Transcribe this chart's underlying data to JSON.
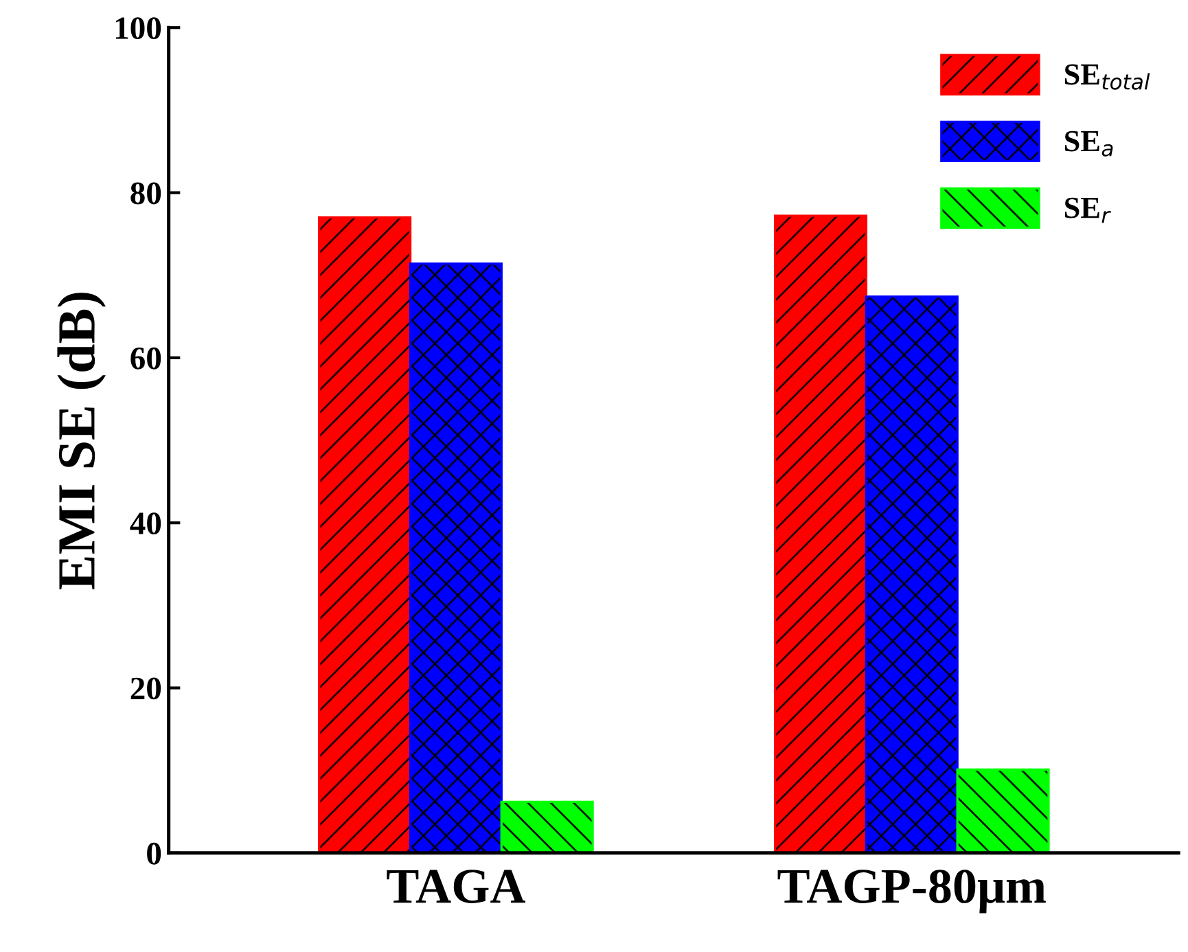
{
  "chart_data": {
    "type": "bar",
    "ylabel": "EMI SE (dB)",
    "categories": [
      "TAGA",
      "TAGP-80μm"
    ],
    "series": [
      {
        "name": "SE$_{total}$",
        "color": "#ff0000",
        "values": [
          77.0,
          77.2
        ]
      },
      {
        "name": "SE$_{a}$",
        "color": "#0000ff",
        "values": [
          71.4,
          67.4
        ]
      },
      {
        "name": "SE$_{r}$",
        "color": "#00ff00",
        "values": [
          6.2,
          10.1
        ]
      }
    ],
    "ylim": [
      0,
      100
    ],
    "yticks": [
      0,
      20,
      40,
      60,
      80,
      100
    ],
    "grid": false,
    "legend": "top right"
  }
}
